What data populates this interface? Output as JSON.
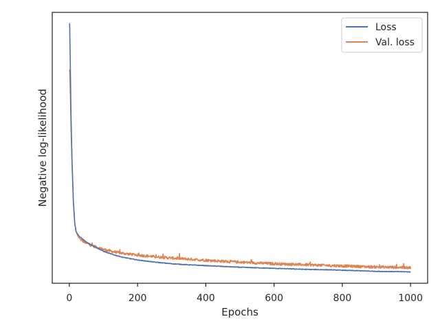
{
  "chart_data": {
    "type": "line",
    "title": "",
    "xlabel": "Epochs",
    "ylabel": "Negative log-likelihood",
    "xlim": [
      -50,
      1050
    ],
    "ylim": [
      0,
      100
    ],
    "x_ticks": [
      0,
      200,
      400,
      600,
      800,
      1000
    ],
    "y_ticks_shown": false,
    "grid": false,
    "legend": "top-right",
    "series": [
      {
        "name": "Loss",
        "color": "#4c72b0",
        "x": [
          1,
          3,
          5,
          8,
          12,
          16,
          20,
          25,
          30,
          40,
          50,
          60,
          80,
          100,
          130,
          160,
          200,
          250,
          300,
          350,
          400,
          450,
          500,
          550,
          600,
          650,
          700,
          750,
          800,
          850,
          900,
          950,
          1000
        ],
        "y": [
          96,
          80,
          62,
          45,
          30,
          22,
          19,
          18,
          17.2,
          16.2,
          15.2,
          14.5,
          13.2,
          11.8,
          10.5,
          9.5,
          8.6,
          7.8,
          7.2,
          6.8,
          6.5,
          6.2,
          5.9,
          5.7,
          5.5,
          5.3,
          5.1,
          5.0,
          4.8,
          4.6,
          4.4,
          4.3,
          4.2
        ],
        "noise": 0.12
      },
      {
        "name": "Val. loss",
        "color": "#dd8452",
        "x": [
          1,
          3,
          5,
          8,
          12,
          16,
          20,
          25,
          30,
          40,
          50,
          60,
          80,
          100,
          130,
          160,
          200,
          250,
          300,
          350,
          400,
          450,
          500,
          550,
          600,
          650,
          700,
          750,
          800,
          850,
          900,
          950,
          1000
        ],
        "y": [
          79,
          70,
          58,
          44,
          30,
          22,
          19,
          17.5,
          16.5,
          15.5,
          14.8,
          14.2,
          13.3,
          12.5,
          11.6,
          11.0,
          10.4,
          9.8,
          9.3,
          8.9,
          8.5,
          8.1,
          7.8,
          7.5,
          7.2,
          7.0,
          6.8,
          6.6,
          6.4,
          6.2,
          6.0,
          5.9,
          5.8
        ],
        "noise": 0.5
      }
    ]
  }
}
